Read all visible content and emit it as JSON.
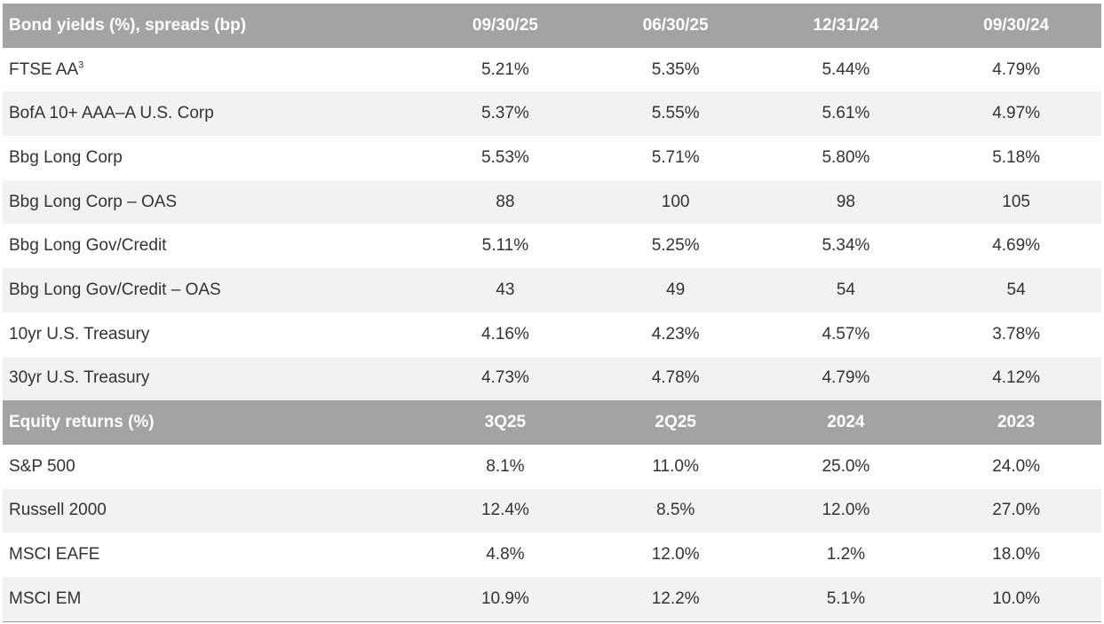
{
  "bond_section": {
    "header": [
      "Bond yields (%), spreads (bp)",
      "09/30/25",
      "06/30/25",
      "12/31/24",
      "09/30/24"
    ],
    "rows": [
      {
        "label": "FTSE AA",
        "sup": "3",
        "values": [
          "5.21%",
          "5.35%",
          "5.44%",
          "4.79%"
        ]
      },
      {
        "label": "BofA 10+ AAA–A U.S. Corp",
        "sup": "",
        "values": [
          "5.37%",
          "5.55%",
          "5.61%",
          "4.97%"
        ]
      },
      {
        "label": "Bbg Long Corp",
        "sup": "",
        "values": [
          "5.53%",
          "5.71%",
          "5.80%",
          "5.18%"
        ]
      },
      {
        "label": "Bbg Long Corp – OAS",
        "sup": "",
        "values": [
          "88",
          "100",
          "98",
          "105"
        ]
      },
      {
        "label": "Bbg Long Gov/Credit",
        "sup": "",
        "values": [
          "5.11%",
          "5.25%",
          "5.34%",
          "4.69%"
        ]
      },
      {
        "label": "Bbg Long Gov/Credit – OAS",
        "sup": "",
        "values": [
          "43",
          "49",
          "54",
          "54"
        ]
      },
      {
        "label": "10yr U.S. Treasury",
        "sup": "",
        "values": [
          "4.16%",
          "4.23%",
          "4.57%",
          "3.78%"
        ]
      },
      {
        "label": "30yr U.S. Treasury",
        "sup": "",
        "values": [
          "4.73%",
          "4.78%",
          "4.79%",
          "4.12%"
        ]
      }
    ]
  },
  "equity_section": {
    "header": [
      "Equity returns (%)",
      "3Q25",
      "2Q25",
      "2024",
      "2023"
    ],
    "rows": [
      {
        "label": "S&P 500",
        "sup": "",
        "values": [
          "8.1%",
          "11.0%",
          "25.0%",
          "24.0%"
        ]
      },
      {
        "label": "Russell 2000",
        "sup": "",
        "values": [
          "12.4%",
          "8.5%",
          "12.0%",
          "27.0%"
        ]
      },
      {
        "label": "MSCI EAFE",
        "sup": "",
        "values": [
          "4.8%",
          "12.0%",
          "1.2%",
          "18.0%"
        ]
      },
      {
        "label": "MSCI EM",
        "sup": "",
        "values": [
          "10.9%",
          "12.2%",
          "5.1%",
          "10.0%"
        ]
      }
    ]
  },
  "colors": {
    "header_bg": "#a3a3a3",
    "stripe_bg": "#f2f2f2",
    "text": "#333333"
  }
}
